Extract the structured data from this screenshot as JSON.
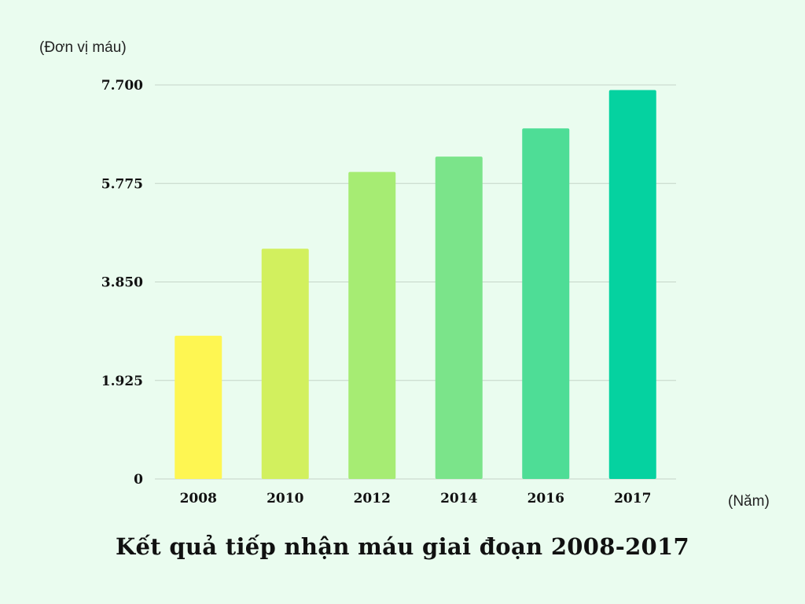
{
  "chart_data": {
    "type": "bar",
    "title": "Kết quả tiếp nhận máu giai đoạn 2008-2017",
    "ylabel": "(Đơn vị máu)",
    "xlabel": "(Năm)",
    "categories": [
      "2008",
      "2010",
      "2012",
      "2014",
      "2016",
      "2017"
    ],
    "values": [
      2800,
      4500,
      6000,
      6300,
      6850,
      7600
    ],
    "ylim": [
      0,
      7700
    ],
    "yticks": [
      0,
      1925,
      3850,
      5775,
      7700
    ],
    "ytick_labels": [
      "0",
      "1.925",
      "3.850",
      "5.775",
      "7.700"
    ],
    "grid": true,
    "colors": [
      "#fef652",
      "#d2f05e",
      "#a6ec73",
      "#7be48a",
      "#4edd96",
      "#05d2a0"
    ],
    "gridline_color": "#c5d5c8",
    "background": "#eafcef"
  }
}
